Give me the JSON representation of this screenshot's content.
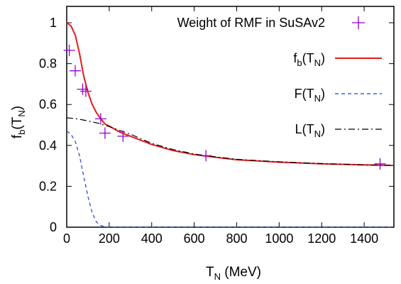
{
  "chart_data": {
    "type": "line",
    "xlabel": "T",
    "xlabel_sub": "N",
    "xlabel_unit": " (MeV)",
    "ylabel": "f",
    "ylabel_sub": "b",
    "ylabel_arg": "(T",
    "ylabel_arg_sub": "N",
    "ylabel_close": ")",
    "xlim": [
      0,
      1540
    ],
    "ylim": [
      0,
      1.08
    ],
    "x_ticks": [
      0,
      200,
      400,
      600,
      800,
      1000,
      1200,
      1400
    ],
    "x_tick_labels": [
      "0",
      "200",
      "400",
      "600",
      "800",
      "1000",
      "1200",
      "1400"
    ],
    "y_ticks": [
      0,
      0.2,
      0.4,
      0.6,
      0.8,
      1
    ],
    "y_tick_labels": [
      "0",
      "0.2",
      "0.4",
      "0.6",
      "0.8",
      "1"
    ],
    "grid": false,
    "legend_position": "top-right",
    "series": [
      {
        "name": "Weight of RMF in SuSAv2",
        "kind": "points",
        "marker": "plus",
        "color": "#9400d3",
        "x": [
          12,
          40,
          75,
          90,
          160,
          180,
          265,
          655,
          1475
        ],
        "y": [
          0.865,
          0.765,
          0.675,
          0.665,
          0.53,
          0.46,
          0.445,
          0.35,
          0.31
        ]
      },
      {
        "name": "fb(TN)",
        "label_main": "f",
        "label_sub": "b",
        "label_arg": "(T",
        "label_arg_sub": "N",
        "label_close": ")",
        "kind": "line",
        "style": "solid",
        "color": "#e41a1c",
        "x": [
          0,
          20,
          40,
          60,
          80,
          100,
          120,
          140,
          160,
          180,
          200,
          250,
          300,
          400,
          500,
          600,
          700,
          800,
          1000,
          1200,
          1400,
          1540
        ],
        "y": [
          1.0,
          0.985,
          0.94,
          0.85,
          0.74,
          0.66,
          0.6,
          0.56,
          0.53,
          0.505,
          0.495,
          0.465,
          0.445,
          0.405,
          0.375,
          0.355,
          0.342,
          0.33,
          0.318,
          0.31,
          0.305,
          0.302
        ]
      },
      {
        "name": "F(TN)",
        "label_main": "F",
        "label_sub": "",
        "label_arg": "(T",
        "label_arg_sub": "N",
        "label_close": ")",
        "kind": "line",
        "style": "dashed",
        "color": "#1f3fd6",
        "x": [
          0,
          20,
          40,
          60,
          80,
          100,
          120,
          140,
          160,
          180,
          200,
          300,
          600,
          1000,
          1540
        ],
        "y": [
          0.47,
          0.455,
          0.42,
          0.35,
          0.25,
          0.15,
          0.07,
          0.025,
          0.008,
          0.002,
          0.0,
          0.0,
          0.0,
          0.0,
          0.0
        ]
      },
      {
        "name": "L(TN)",
        "label_main": "L",
        "label_sub": "",
        "label_arg": "(T",
        "label_arg_sub": "N",
        "label_close": ")",
        "kind": "line",
        "style": "dashdot",
        "color": "#000000",
        "x": [
          0,
          50,
          100,
          150,
          200,
          250,
          300,
          400,
          500,
          600,
          700,
          800,
          1000,
          1200,
          1400,
          1540
        ],
        "y": [
          0.535,
          0.53,
          0.52,
          0.508,
          0.492,
          0.473,
          0.455,
          0.41,
          0.38,
          0.358,
          0.344,
          0.332,
          0.32,
          0.311,
          0.305,
          0.302
        ]
      }
    ]
  }
}
